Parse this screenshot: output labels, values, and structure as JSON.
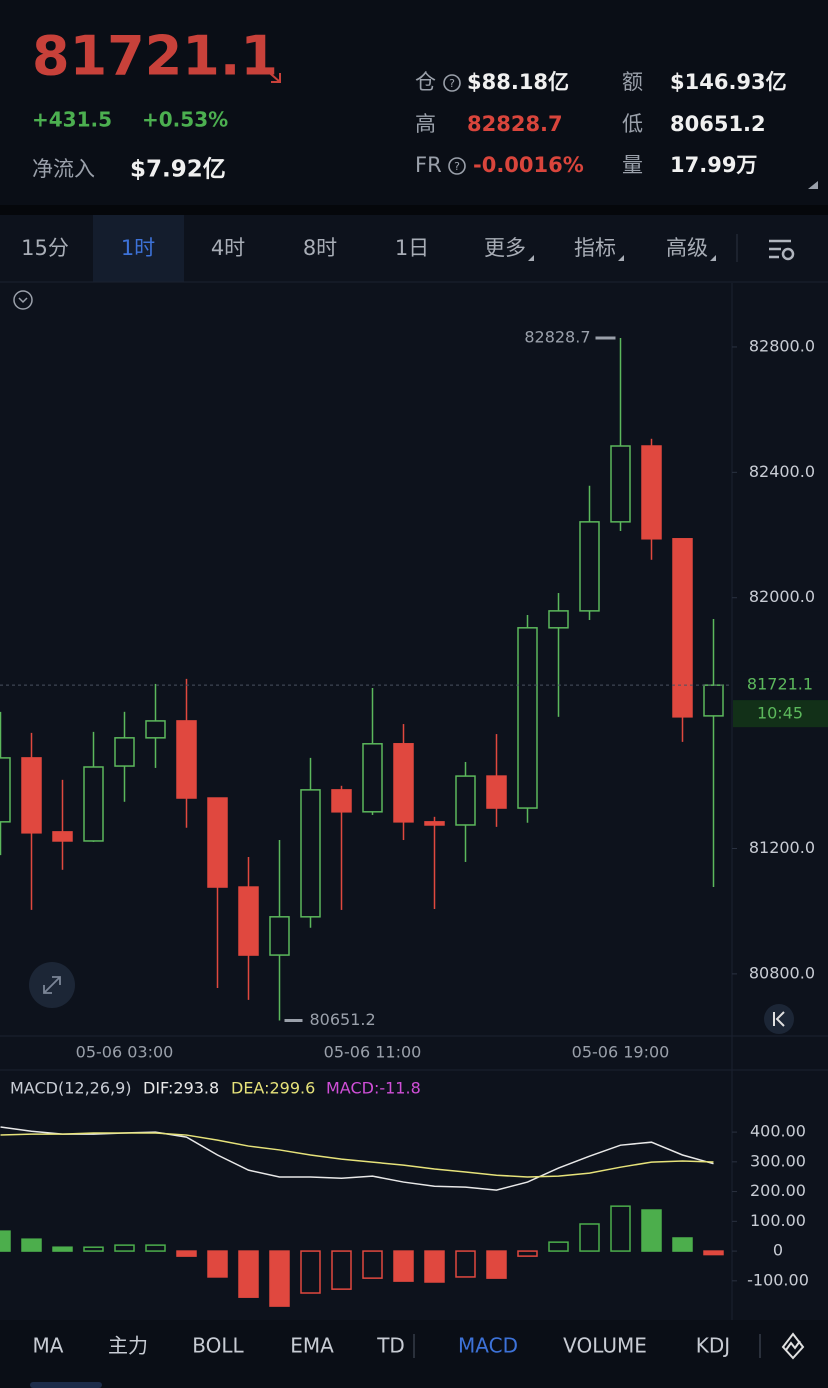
{
  "header": {
    "price": "81721.1",
    "change": "+431.5",
    "change_pct": "+0.53%",
    "net_inflow_label": "净流入",
    "net_inflow": "$7.92亿",
    "stats": [
      {
        "label": "仓",
        "value": "$88.18亿"
      },
      {
        "label": "额",
        "value": "$146.93亿"
      },
      {
        "label": "高",
        "value": "82828.7"
      },
      {
        "label": "低",
        "value": "80651.2"
      },
      {
        "label": "FR",
        "value": "-0.0016%"
      },
      {
        "label": "量",
        "value": "17.99万"
      }
    ]
  },
  "timeframe_tabs": [
    "15分",
    "1时",
    "4时",
    "8时",
    "1日",
    "更多",
    "指标",
    "高级"
  ],
  "active_timeframe": 1,
  "indicator_tabs": [
    "MA",
    "主力",
    "BOLL",
    "EMA",
    "TD",
    "MACD",
    "VOLUME",
    "KDJ"
  ],
  "active_indicator": 5,
  "chart_data": [
    {
      "type": "candlestick",
      "categories": [
        null,
        null,
        null,
        null,
        "05-06 03:00",
        null,
        null,
        null,
        null,
        null,
        null,
        null,
        "05-06 11:00",
        null,
        null,
        null,
        null,
        null,
        null,
        null,
        "05-06 19:00",
        null,
        null,
        null
      ],
      "open": [
        81285,
        81489,
        81253,
        81224,
        81463,
        81553,
        81607,
        81361,
        81077,
        80860,
        80982,
        81387,
        81317,
        81534,
        81285,
        81275,
        81431,
        81329,
        81904,
        81958,
        82242,
        82484,
        82188,
        81623
      ],
      "high": [
        81636,
        81569,
        81419,
        81572,
        81636,
        81725,
        81741,
        81361,
        81173,
        81227,
        81489,
        81400,
        81712,
        81597,
        81301,
        81476,
        81565,
        81945,
        82015,
        82357,
        82828.7,
        82507,
        82188,
        81932
      ],
      "low": [
        81179,
        81004,
        81132,
        81221,
        81349,
        81457,
        81266,
        80755,
        80717,
        80651.2,
        80947,
        81004,
        81307,
        81227,
        81007,
        81157,
        81269,
        81282,
        81620,
        81929,
        82213,
        82121,
        81540,
        81077
      ],
      "close": [
        81489,
        81250,
        81224,
        81460,
        81553,
        81607,
        81361,
        81077,
        80860,
        80982,
        81387,
        81317,
        81534,
        81285,
        81275,
        81431,
        81329,
        81904,
        81958,
        82242,
        82484,
        82188,
        81620,
        81721.1
      ],
      "up_color": "#5cb85c",
      "down_color": "#e0483f",
      "ylim": [
        80605,
        83004
      ],
      "yticks": [
        {
          "value": 80800,
          "label": "80800.0"
        },
        {
          "value": 81200,
          "label": "81200.0"
        },
        {
          "value": 82000,
          "label": "82000.0"
        },
        {
          "value": 82400,
          "label": "82400.0"
        },
        {
          "value": 82800,
          "label": "82800.0"
        }
      ],
      "last_time": "10:45"
    },
    {
      "type": "macd",
      "title": "MACD(12,26,9)",
      "series": [
        {
          "label": "DIF:293.8",
          "color": "#e8e8e8",
          "values": [
            417,
            403,
            393,
            393,
            397,
            400,
            383,
            323,
            272,
            249,
            249,
            245,
            252,
            232,
            218,
            215,
            205,
            232,
            279,
            319,
            356,
            366,
            323,
            293.8
          ]
        },
        {
          "label": "DEA:299.6",
          "color": "#e6e27a",
          "values": [
            390,
            393,
            393,
            397,
            397,
            397,
            390,
            373,
            353,
            340,
            323,
            309,
            299,
            289,
            276,
            266,
            255,
            249,
            252,
            262,
            282,
            299,
            303,
            299.6
          ]
        },
        {
          "label": "MACD:-11.8",
          "color": "#d04fd8",
          "type": "bar",
          "values": [
            67,
            40,
            13,
            13,
            20,
            20,
            -17,
            -87,
            -155,
            -185,
            -141,
            -128,
            -91,
            -101,
            -104,
            -87,
            -91,
            -17,
            30,
            91,
            151,
            138,
            44,
            -11.8
          ]
        }
      ],
      "up_color": "#4cae4c",
      "down_color": "#e0483f",
      "ylim": [
        -225,
        602
      ],
      "yticks": [
        {
          "value": -100,
          "label": "-100.00"
        },
        0,
        {
          "value": 100,
          "label": "100.00"
        },
        {
          "value": 200,
          "label": "200.00"
        },
        {
          "value": 300,
          "label": "300.00"
        },
        {
          "value": 400,
          "label": "400.00"
        }
      ]
    }
  ]
}
